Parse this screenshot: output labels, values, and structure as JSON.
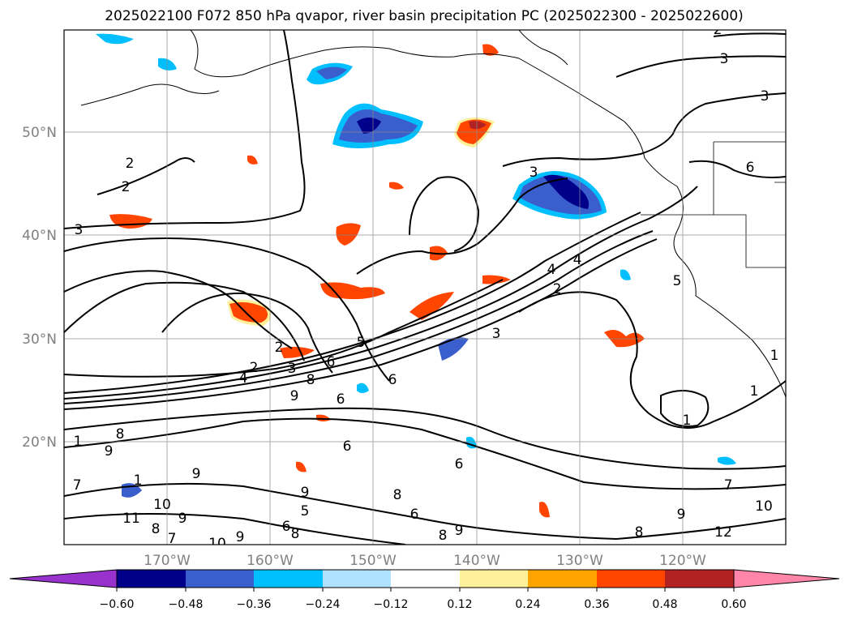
{
  "title": "2025022100 F072 850 hPa qvapor, river basin precipitation PC (2025022300 - 2025022600)",
  "map": {
    "lon_range": [
      -180,
      -110
    ],
    "lat_range": [
      10,
      60
    ],
    "lat_ticks": [
      {
        "value": 20,
        "label": "20°N"
      },
      {
        "value": 30,
        "label": "30°N"
      },
      {
        "value": 40,
        "label": "40°N"
      },
      {
        "value": 50,
        "label": "50°N"
      }
    ],
    "lon_ticks": [
      {
        "value": -170,
        "label": "170°W"
      },
      {
        "value": -160,
        "label": "160°W"
      },
      {
        "value": -150,
        "label": "150°W"
      },
      {
        "value": -140,
        "label": "140°W"
      },
      {
        "value": -130,
        "label": "130°W"
      },
      {
        "value": -120,
        "label": "120°W"
      }
    ],
    "gridlines": true,
    "contour_labels": [
      "2",
      "3",
      "3",
      "2",
      "2",
      "3",
      "6",
      "3",
      "2",
      "4",
      "5",
      "6",
      "6",
      "4",
      "3",
      "1",
      "2",
      "2",
      "3",
      "4",
      "5",
      "6",
      "8",
      "9",
      "6",
      "6",
      "1",
      "8",
      "9",
      "7",
      "1",
      "10",
      "11",
      "8",
      "9",
      "7",
      "10",
      "9",
      "9",
      "6",
      "8",
      "9",
      "6",
      "8",
      "9",
      "10",
      "12",
      "7",
      "1",
      "1",
      "5",
      "8",
      "9",
      "8"
    ]
  },
  "colorbar": {
    "colors": [
      "#9932cc",
      "#00008b",
      "#3a5fcd",
      "#00bfff",
      "#b0e2ff",
      "#ffffff",
      "#fff09a",
      "#ffa500",
      "#ff4500",
      "#b22222",
      "#ff86a8"
    ],
    "tick_labels": [
      "−0.60",
      "−0.48",
      "−0.36",
      "−0.24",
      "−0.12",
      "0.12",
      "0.24",
      "0.36",
      "0.48",
      "0.60"
    ],
    "extend": "both"
  }
}
